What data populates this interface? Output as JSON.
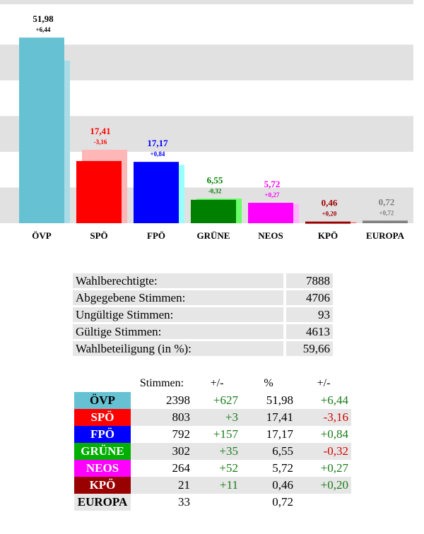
{
  "chart_data": {
    "type": "bar",
    "categories": [
      "ÖVP",
      "SPÖ",
      "FPÖ",
      "GRÜNE",
      "NEOS",
      "KPÖ",
      "EUROPA"
    ],
    "series": [
      {
        "values": [
          51.98,
          17.41,
          17.17,
          6.55,
          5.72,
          0.46,
          0.72
        ]
      },
      {
        "values": [
          45.54,
          20.57,
          16.33,
          6.87,
          5.45,
          0.26,
          null
        ]
      }
    ],
    "change_labels": [
      "+6,44",
      "-3,16",
      "+0,84",
      "-0,32",
      "+0,27",
      "+0,20",
      "+0,72"
    ],
    "value_labels": [
      "51,98",
      "17,41",
      "17,17",
      "6,55",
      "5,72",
      "0,46",
      "0,72"
    ],
    "colors": [
      "#66c2d2",
      "#ff0000",
      "#0000ff",
      "#008000",
      "#ff00ff",
      "#990000",
      "#808080"
    ],
    "prev_colors": [
      "#a9dce6",
      "#ffb6b6",
      "#99ffff",
      "#66ff66",
      "#ffb3ff",
      "#ff6666",
      null
    ],
    "label_colors": [
      "#000000",
      "#ff0000",
      "#0000ff",
      "#008000",
      "#ff00ff",
      "#990000",
      "#808080"
    ],
    "ylim": [
      0,
      60
    ],
    "grid": "alternating-bands"
  },
  "summary": [
    {
      "label": "Wahlberechtigte:",
      "value": "7888"
    },
    {
      "label": "Abgegebene Stimmen:",
      "value": "4706"
    },
    {
      "label": "Ungültige Stimmen:",
      "value": "93"
    },
    {
      "label": "Gültige Stimmen:",
      "value": "4613"
    },
    {
      "label": "Wahlbeteiligung (in %):",
      "value": "59,66"
    }
  ],
  "results": {
    "headers": [
      "Stimmen:",
      "+/-",
      "%",
      "+/-"
    ],
    "rows": [
      {
        "party": "ÖVP",
        "color": "#66c2d2",
        "text_color": "#000000",
        "votes": "2398",
        "votes_diff": "+627",
        "pct": "51,98",
        "pct_diff": "+6,44"
      },
      {
        "party": "SPÖ",
        "color": "#ff0000",
        "text_color": "#ffffff",
        "votes": "803",
        "votes_diff": "+3",
        "pct": "17,41",
        "pct_diff": "-3,16"
      },
      {
        "party": "FPÖ",
        "color": "#0000ff",
        "text_color": "#ffffff",
        "votes": "792",
        "votes_diff": "+157",
        "pct": "17,17",
        "pct_diff": "+0,84"
      },
      {
        "party": "GRÜNE",
        "color": "#00b000",
        "text_color": "#ffffff",
        "votes": "302",
        "votes_diff": "+35",
        "pct": "6,55",
        "pct_diff": "-0,32"
      },
      {
        "party": "NEOS",
        "color": "#ff00ff",
        "text_color": "#ffffff",
        "votes": "264",
        "votes_diff": "+52",
        "pct": "5,72",
        "pct_diff": "+0,27"
      },
      {
        "party": "KPÖ",
        "color": "#990000",
        "text_color": "#ffffff",
        "votes": "21",
        "votes_diff": "+11",
        "pct": "0,46",
        "pct_diff": "+0,20"
      },
      {
        "party": "EUROPA",
        "color": "#e6e6e6",
        "text_color": "#000000",
        "votes": "33",
        "votes_diff": "",
        "pct": "0,72",
        "pct_diff": ""
      }
    ]
  }
}
